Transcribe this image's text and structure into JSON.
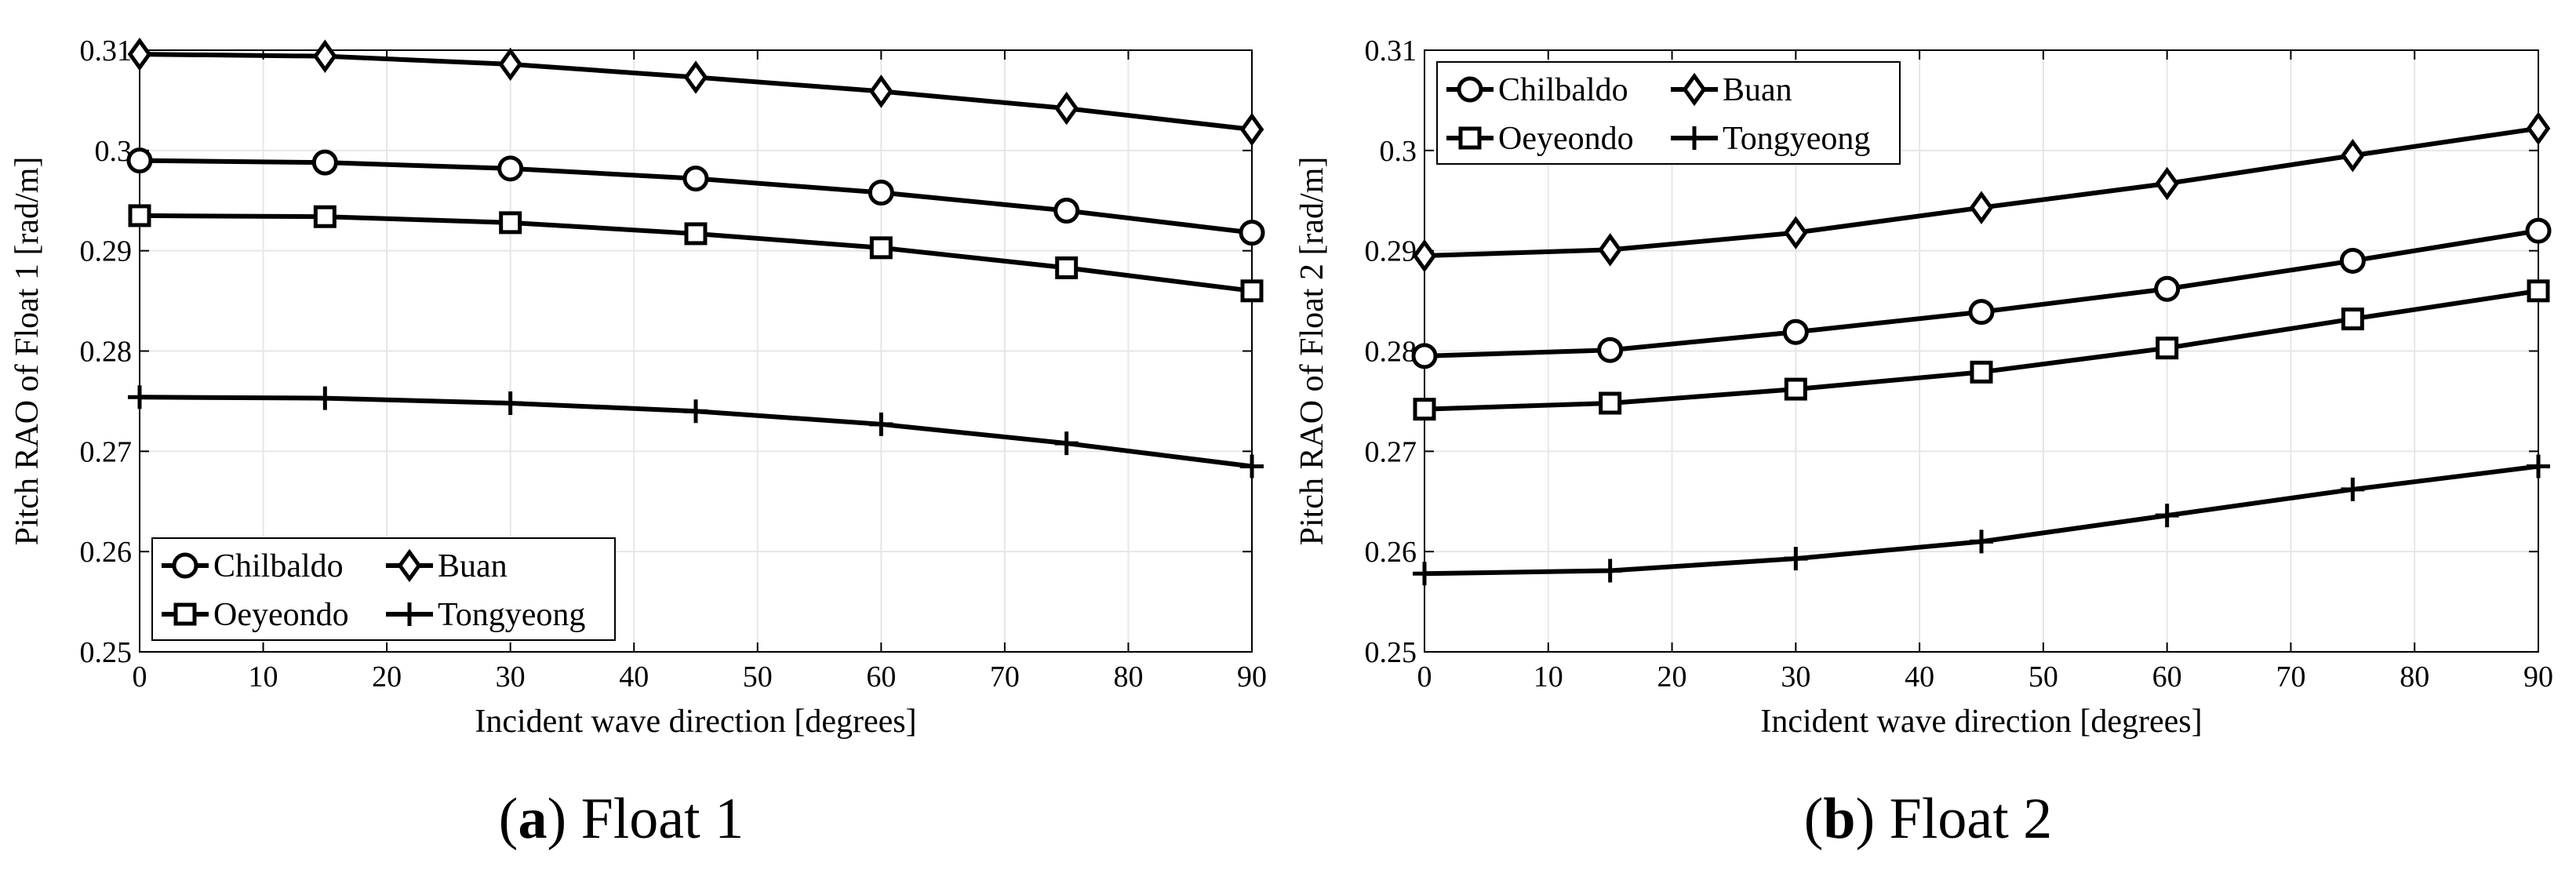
{
  "figure_captions": [
    {
      "open": "(",
      "letter": "a",
      "close": ") ",
      "title": "Float 1"
    },
    {
      "open": "(",
      "letter": "b",
      "close": ") ",
      "title": "Float 2"
    }
  ],
  "chart_data": [
    {
      "type": "line",
      "title": "",
      "xlabel": "Incident wave direction [degrees]",
      "ylabel": "Pitch RAO of Float 1 [rad/m]",
      "xlim": [
        0,
        90
      ],
      "ylim": [
        0.25,
        0.31
      ],
      "xticks": [
        0,
        10,
        20,
        30,
        40,
        50,
        60,
        70,
        80,
        90
      ],
      "xtick_labels": [
        "0",
        "10",
        "20",
        "30",
        "40",
        "50",
        "60",
        "70",
        "80",
        "90"
      ],
      "yticks": [
        0.25,
        0.26,
        0.27,
        0.28,
        0.29,
        0.3,
        0.31
      ],
      "ytick_labels": [
        "0.25",
        "0.26",
        "0.27",
        "0.28",
        "0.29",
        "0.3",
        "0.31"
      ],
      "grid": true,
      "legend_position": "bottom-left",
      "x": [
        0,
        15,
        30,
        45,
        60,
        75,
        90
      ],
      "series": [
        {
          "name": "Chilbaldo",
          "marker": "circle",
          "values": [
            0.299,
            0.2988,
            0.2982,
            0.2972,
            0.2958,
            0.294,
            0.2918
          ]
        },
        {
          "name": "Buan",
          "marker": "diamond",
          "values": [
            0.3096,
            0.3094,
            0.3086,
            0.3073,
            0.3059,
            0.3042,
            0.3021
          ]
        },
        {
          "name": "Oeyeondo",
          "marker": "square",
          "values": [
            0.2935,
            0.2934,
            0.2928,
            0.2917,
            0.2903,
            0.2883,
            0.286
          ]
        },
        {
          "name": "Tongyeong",
          "marker": "plus",
          "values": [
            0.2754,
            0.2753,
            0.2748,
            0.274,
            0.2727,
            0.2708,
            0.2685
          ]
        }
      ]
    },
    {
      "type": "line",
      "title": "",
      "xlabel": "Incident wave direction [degrees]",
      "ylabel": "Pitch RAO of Float 2 [rad/m]",
      "xlim": [
        0,
        90
      ],
      "ylim": [
        0.25,
        0.31
      ],
      "xticks": [
        0,
        10,
        20,
        30,
        40,
        50,
        60,
        70,
        80,
        90
      ],
      "xtick_labels": [
        "0",
        "10",
        "20",
        "30",
        "40",
        "50",
        "60",
        "70",
        "80",
        "90"
      ],
      "yticks": [
        0.25,
        0.26,
        0.27,
        0.28,
        0.29,
        0.3,
        0.31
      ],
      "ytick_labels": [
        "0.25",
        "0.26",
        "0.27",
        "0.28",
        "0.29",
        "0.3",
        "0.31"
      ],
      "grid": true,
      "legend_position": "top-left",
      "x": [
        0,
        15,
        30,
        45,
        60,
        75,
        90
      ],
      "series": [
        {
          "name": "Chilbaldo",
          "marker": "circle",
          "values": [
            0.2795,
            0.2801,
            0.2819,
            0.2839,
            0.2862,
            0.289,
            0.292
          ]
        },
        {
          "name": "Buan",
          "marker": "diamond",
          "values": [
            0.2895,
            0.2901,
            0.2918,
            0.2943,
            0.2967,
            0.2995,
            0.3022
          ]
        },
        {
          "name": "Oeyeondo",
          "marker": "square",
          "values": [
            0.2742,
            0.2748,
            0.2762,
            0.2779,
            0.2803,
            0.2832,
            0.286
          ]
        },
        {
          "name": "Tongyeong",
          "marker": "plus",
          "values": [
            0.2578,
            0.2581,
            0.2593,
            0.261,
            0.2636,
            0.2662,
            0.2685
          ]
        }
      ]
    }
  ]
}
